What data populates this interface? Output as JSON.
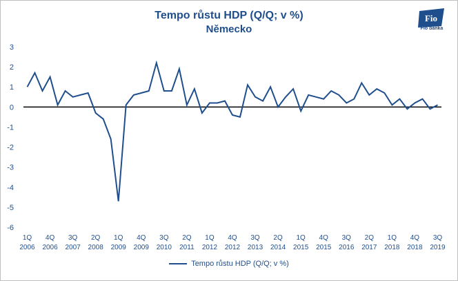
{
  "chart_data": {
    "type": "line",
    "title": "Tempo růstu HDP (Q/Q; v %)",
    "subtitle": "Německo",
    "xlabel": "",
    "ylabel": "",
    "ylim": [
      -6,
      3
    ],
    "yticks": [
      "3",
      "2",
      "1",
      "0",
      "-1",
      "-2",
      "-3",
      "-4",
      "-5",
      "-6"
    ],
    "x_tick_labels": [
      {
        "q": "1Q",
        "y": "2006"
      },
      {
        "q": "4Q",
        "y": "2006"
      },
      {
        "q": "3Q",
        "y": "2007"
      },
      {
        "q": "2Q",
        "y": "2008"
      },
      {
        "q": "1Q",
        "y": "2009"
      },
      {
        "q": "4Q",
        "y": "2009"
      },
      {
        "q": "3Q",
        "y": "2010"
      },
      {
        "q": "2Q",
        "y": "2011"
      },
      {
        "q": "1Q",
        "y": "2012"
      },
      {
        "q": "4Q",
        "y": "2012"
      },
      {
        "q": "3Q",
        "y": "2013"
      },
      {
        "q": "2Q",
        "y": "2014"
      },
      {
        "q": "1Q",
        "y": "2015"
      },
      {
        "q": "4Q",
        "y": "2015"
      },
      {
        "q": "3Q",
        "y": "2016"
      },
      {
        "q": "2Q",
        "y": "2017"
      },
      {
        "q": "1Q",
        "y": "2018"
      },
      {
        "q": "4Q",
        "y": "2018"
      },
      {
        "q": "3Q",
        "y": "2019"
      }
    ],
    "series": [
      {
        "name": "Tempo růstu HDP (Q/Q; v %)",
        "color": "#1f4e8c",
        "values": [
          1.0,
          1.7,
          0.8,
          1.5,
          0.1,
          0.8,
          0.5,
          0.6,
          0.7,
          -0.3,
          -0.6,
          -1.6,
          -4.7,
          0.1,
          0.6,
          0.7,
          0.8,
          2.2,
          0.8,
          0.8,
          1.9,
          0.1,
          0.9,
          -0.3,
          0.2,
          0.2,
          0.3,
          -0.4,
          -0.5,
          1.1,
          0.5,
          0.3,
          1.0,
          0.0,
          0.5,
          0.9,
          -0.2,
          0.6,
          0.5,
          0.4,
          0.8,
          0.6,
          0.2,
          0.4,
          1.2,
          0.6,
          0.9,
          0.7,
          0.1,
          0.4,
          -0.1,
          0.2,
          0.4,
          -0.1,
          0.1
        ]
      }
    ],
    "legend_position": "bottom",
    "grid": false
  },
  "logo": {
    "text": "Fio banka",
    "mark": "Fio"
  }
}
